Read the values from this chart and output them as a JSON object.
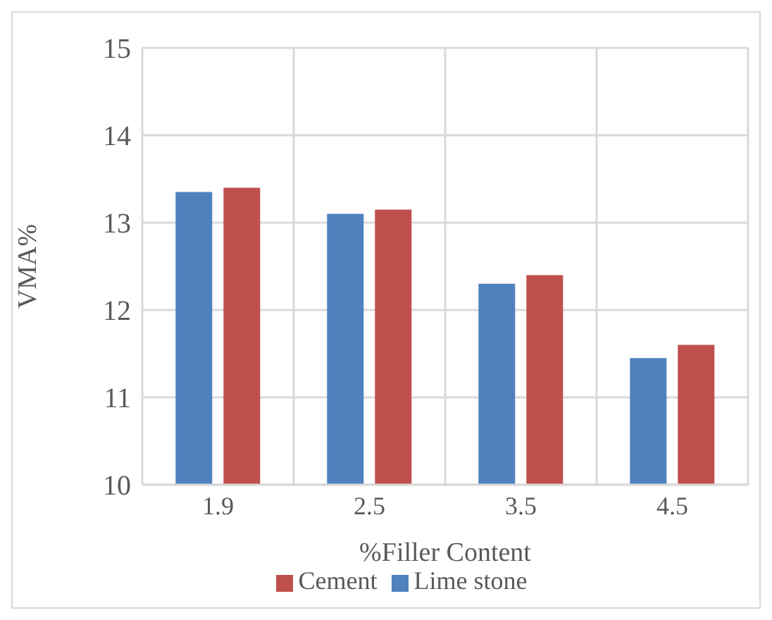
{
  "chart_data": {
    "type": "bar",
    "xlabel": "%Filler Content",
    "ylabel": "VMA%",
    "categories": [
      "1.9",
      "2.5",
      "3.5",
      "4.5"
    ],
    "series": [
      {
        "name": "Lime stone",
        "color": "#4f81bd",
        "values": [
          13.35,
          13.1,
          12.3,
          11.45
        ]
      },
      {
        "name": "Cement",
        "color": "#c0504d",
        "values": [
          13.4,
          13.15,
          12.4,
          11.6
        ]
      }
    ],
    "ylim": [
      10,
      15
    ],
    "yticks": [
      10,
      11,
      12,
      13,
      14,
      15
    ],
    "grid": true,
    "legend": "bottom"
  }
}
